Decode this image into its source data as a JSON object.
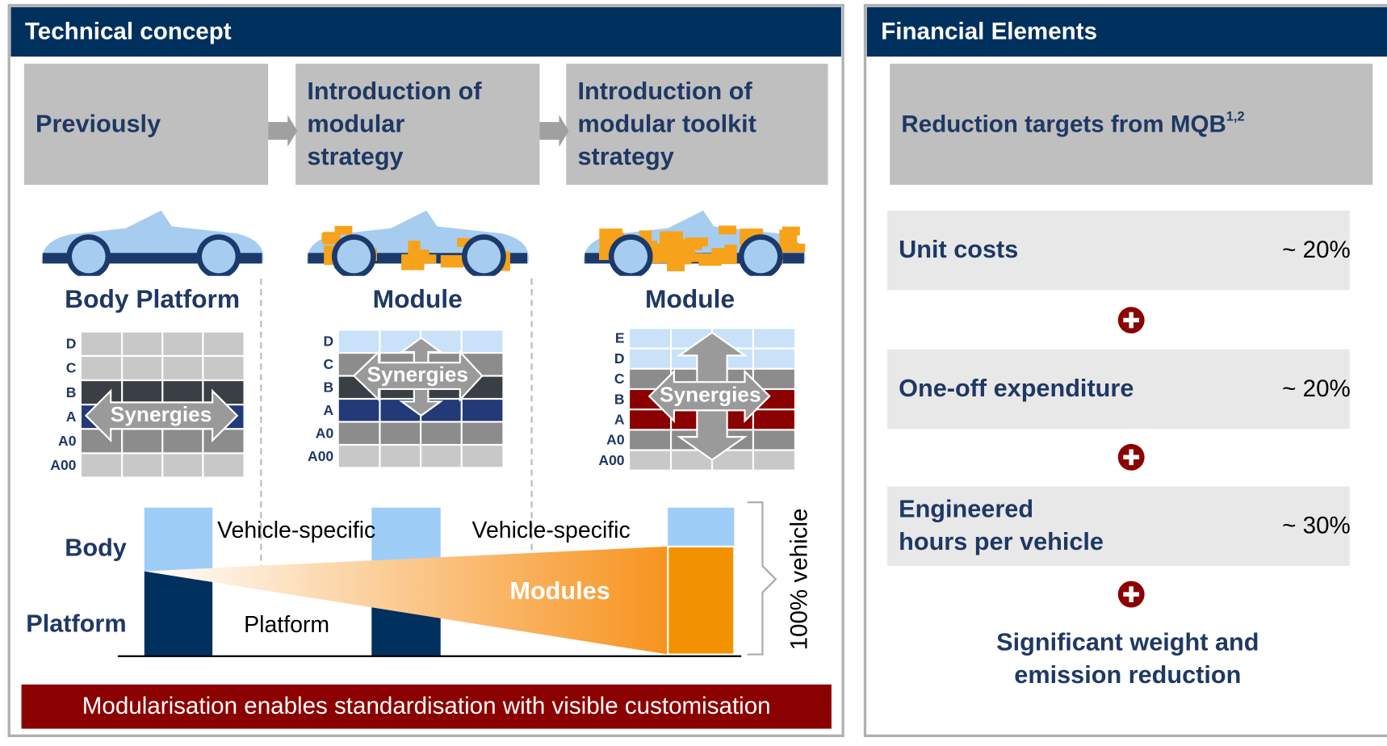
{
  "left_panel": {
    "title": "Technical concept",
    "stages": [
      {
        "lines": [
          "Previously"
        ]
      },
      {
        "lines": [
          "Introduction of",
          "modular",
          "strategy"
        ]
      },
      {
        "lines": [
          "Introduction of",
          "modular toolkit",
          "strategy"
        ]
      }
    ],
    "captions": [
      "Body Platform",
      "Module",
      "Module"
    ],
    "grids": [
      {
        "rows": [
          "D",
          "C",
          "B",
          "A",
          "A0",
          "A00"
        ],
        "label": "Synergies"
      },
      {
        "rows": [
          "D",
          "C",
          "B",
          "A",
          "A0",
          "A00"
        ],
        "label": "Synergies"
      },
      {
        "rows": [
          "E",
          "D",
          "C",
          "B",
          "A",
          "A0",
          "A00"
        ],
        "label": "Synergies"
      }
    ],
    "bottom": {
      "row_labels": [
        "Body",
        "Platform"
      ],
      "vehicle_specific": [
        "Vehicle-specific",
        "Vehicle-specific"
      ],
      "platform": "Platform",
      "modules": "Modules",
      "bracket": "100% vehicle"
    },
    "footer": "Modularisation enables standardisation with visible customisation"
  },
  "right_panel": {
    "title": "Financial Elements",
    "header": "Reduction targets from MQB",
    "header_superscript": "1,2",
    "items": [
      {
        "lines": [
          "Unit costs"
        ],
        "value": "~ 20%"
      },
      {
        "lines": [
          "One-off expenditure"
        ],
        "value": "~ 20%"
      },
      {
        "lines": [
          "Engineered",
          "hours per vehicle"
        ],
        "value": "~ 30%"
      }
    ],
    "conclusion": [
      "Significant weight and",
      "emission reduction"
    ]
  }
}
